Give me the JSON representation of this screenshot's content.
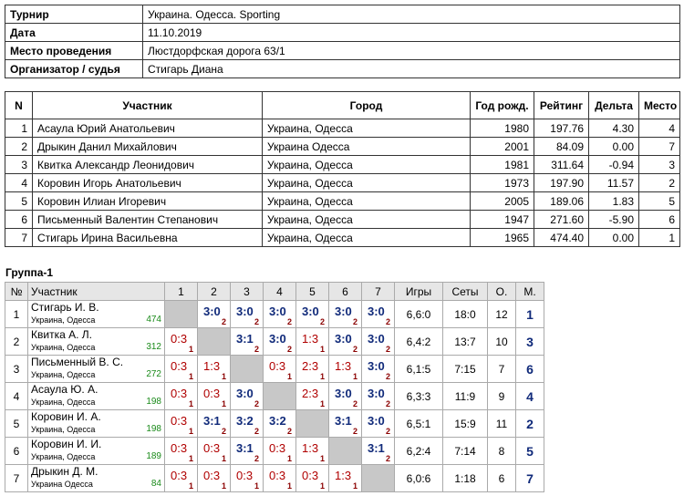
{
  "info": [
    {
      "label": "Турнир",
      "value": "Украина. Одесса. Sporting"
    },
    {
      "label": "Дата",
      "value": "11.10.2019"
    },
    {
      "label": "Место проведения",
      "value": "Люстдорфская дорога 63/1"
    },
    {
      "label": "Организатор / судья",
      "value": "Стигарь Диана"
    }
  ],
  "participants": {
    "header": [
      "N",
      "Участник",
      "Город",
      "Год рожд.",
      "Рейтинг",
      "Дельта",
      "Место"
    ],
    "rows": [
      [
        "1",
        "Асаула Юрий Анатольевич",
        "Украина, Одесса",
        "1980",
        "197.76",
        "4.30",
        "4"
      ],
      [
        "2",
        "Дрыкин Данил Михайлович",
        "Украина Одесса",
        "2001",
        "84.09",
        "0.00",
        "7"
      ],
      [
        "3",
        "Квитка Александр Леонидович",
        "Украина, Одесса",
        "1981",
        "311.64",
        "-0.94",
        "3"
      ],
      [
        "4",
        "Коровин Игорь Анатольевич",
        "Украина, Одесса",
        "1973",
        "197.90",
        "11.57",
        "2"
      ],
      [
        "5",
        "Коровин Илиан Игоревич",
        "Украина, Одесса",
        "2005",
        "189.06",
        "1.83",
        "5"
      ],
      [
        "6",
        "Письменный Валентин Степанович",
        "Украина, Одесса",
        "1947",
        "271.60",
        "-5.90",
        "6"
      ],
      [
        "7",
        "Стигарь Ирина Васильевна",
        "Украина, Одесса",
        "1965",
        "474.40",
        "0.00",
        "1"
      ]
    ]
  },
  "group": {
    "title": "Группа-1",
    "header": [
      "№",
      "Участник",
      "1",
      "2",
      "3",
      "4",
      "5",
      "6",
      "7",
      "Игры",
      "Сеты",
      "О.",
      "М."
    ],
    "rows": [
      {
        "num": "1",
        "name": "Стигарь И. В.",
        "city": "Украина, Одесса",
        "rating": "474",
        "cells": [
          null,
          {
            "score": "3:0",
            "points": "2"
          },
          {
            "score": "3:0",
            "points": "2"
          },
          {
            "score": "3:0",
            "points": "2"
          },
          {
            "score": "3:0",
            "points": "2"
          },
          {
            "score": "3:0",
            "points": "2"
          },
          {
            "score": "3:0",
            "points": "2"
          }
        ],
        "games": "6,6:0",
        "sets": "18:0",
        "points": "12",
        "place": "1"
      },
      {
        "num": "2",
        "name": "Квитка А. Л.",
        "city": "Украина, Одесса",
        "rating": "312",
        "cells": [
          {
            "score": "0:3",
            "points": "1"
          },
          null,
          {
            "score": "3:1",
            "points": "2"
          },
          {
            "score": "3:0",
            "points": "2"
          },
          {
            "score": "1:3",
            "points": "1"
          },
          {
            "score": "3:0",
            "points": "2"
          },
          {
            "score": "3:0",
            "points": "2"
          }
        ],
        "games": "6,4:2",
        "sets": "13:7",
        "points": "10",
        "place": "3"
      },
      {
        "num": "3",
        "name": "Письменный В. С.",
        "city": "Украина, Одесса",
        "rating": "272",
        "cells": [
          {
            "score": "0:3",
            "points": "1"
          },
          {
            "score": "1:3",
            "points": "1"
          },
          null,
          {
            "score": "0:3",
            "points": "1"
          },
          {
            "score": "2:3",
            "points": "1"
          },
          {
            "score": "1:3",
            "points": "1"
          },
          {
            "score": "3:0",
            "points": "2"
          }
        ],
        "games": "6,1:5",
        "sets": "7:15",
        "points": "7",
        "place": "6"
      },
      {
        "num": "4",
        "name": "Асаула Ю. А.",
        "city": "Украина, Одесса",
        "rating": "198",
        "cells": [
          {
            "score": "0:3",
            "points": "1"
          },
          {
            "score": "0:3",
            "points": "1"
          },
          {
            "score": "3:0",
            "points": "2"
          },
          null,
          {
            "score": "2:3",
            "points": "1"
          },
          {
            "score": "3:0",
            "points": "2"
          },
          {
            "score": "3:0",
            "points": "2"
          }
        ],
        "games": "6,3:3",
        "sets": "11:9",
        "points": "9",
        "place": "4"
      },
      {
        "num": "5",
        "name": "Коровин И. А.",
        "city": "Украина, Одесса",
        "rating": "198",
        "cells": [
          {
            "score": "0:3",
            "points": "1"
          },
          {
            "score": "3:1",
            "points": "2"
          },
          {
            "score": "3:2",
            "points": "2"
          },
          {
            "score": "3:2",
            "points": "2"
          },
          null,
          {
            "score": "3:1",
            "points": "2"
          },
          {
            "score": "3:0",
            "points": "2"
          }
        ],
        "games": "6,5:1",
        "sets": "15:9",
        "points": "11",
        "place": "2"
      },
      {
        "num": "6",
        "name": "Коровин И. И.",
        "city": "Украина, Одесса",
        "rating": "189",
        "cells": [
          {
            "score": "0:3",
            "points": "1"
          },
          {
            "score": "0:3",
            "points": "1"
          },
          {
            "score": "3:1",
            "points": "2"
          },
          {
            "score": "0:3",
            "points": "1"
          },
          {
            "score": "1:3",
            "points": "1"
          },
          null,
          {
            "score": "3:1",
            "points": "2"
          }
        ],
        "games": "6,2:4",
        "sets": "7:14",
        "points": "8",
        "place": "5"
      },
      {
        "num": "7",
        "name": "Дрыкин Д. М.",
        "city": "Украина Одесса",
        "rating": "84",
        "cells": [
          {
            "score": "0:3",
            "points": "1"
          },
          {
            "score": "0:3",
            "points": "1"
          },
          {
            "score": "0:3",
            "points": "1"
          },
          {
            "score": "0:3",
            "points": "1"
          },
          {
            "score": "0:3",
            "points": "1"
          },
          {
            "score": "1:3",
            "points": "1"
          },
          null
        ],
        "games": "6,0:6",
        "sets": "1:18",
        "points": "6",
        "place": "7"
      }
    ]
  }
}
